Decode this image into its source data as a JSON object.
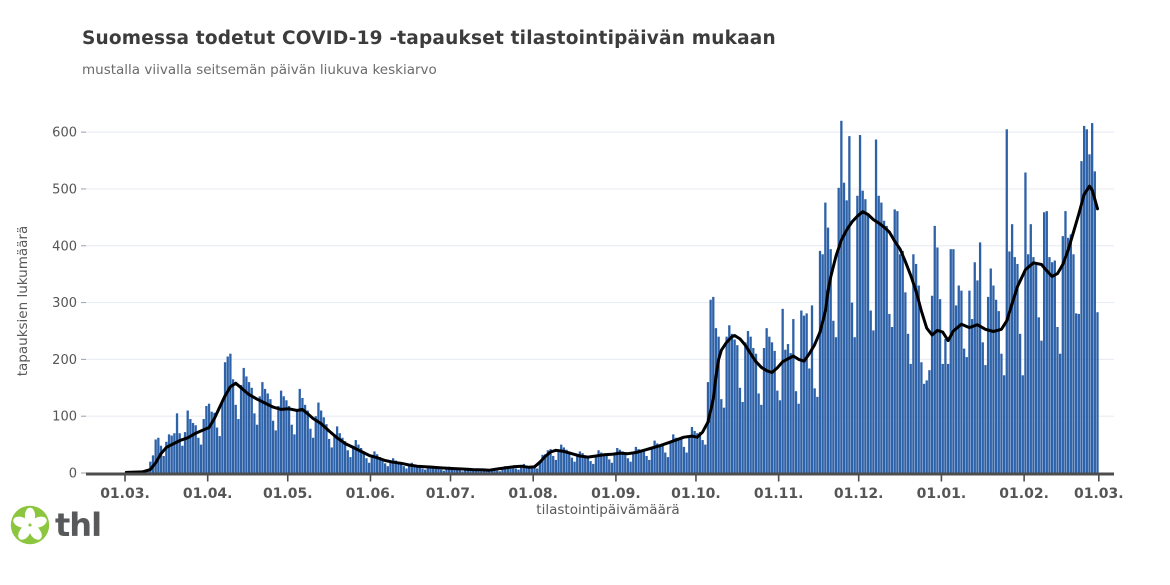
{
  "header": {
    "title": "Suomessa todetut COVID-19 -tapaukset tilastointipäivän mukaan",
    "subtitle": "mustalla viivalla seitsemän päivän liukuva keskiarvo"
  },
  "chart_data": {
    "type": "bar",
    "title": "Suomessa todetut COVID-19 -tapaukset tilastointipäivän mukaan",
    "subtitle": "mustalla viivalla seitsemän päivän liukuva keskiarvo",
    "xlabel": "tilastointipäivämäärä",
    "ylabel": "tapauksien lukumäärä",
    "ylim": [
      0,
      639
    ],
    "grid": true,
    "y_ticks": [
      0,
      100,
      200,
      300,
      400,
      500,
      600
    ],
    "x_ticks": [
      {
        "label": "01.03.",
        "day": 0
      },
      {
        "label": "01.04.",
        "day": 31
      },
      {
        "label": "01.05.",
        "day": 61
      },
      {
        "label": "01.06.",
        "day": 92
      },
      {
        "label": "01.07.",
        "day": 122
      },
      {
        "label": "01.08.",
        "day": 153
      },
      {
        "label": "01.09.",
        "day": 184
      },
      {
        "label": "01.10.",
        "day": 214
      },
      {
        "label": "01.11.",
        "day": 245
      },
      {
        "label": "01.12.",
        "day": 275
      },
      {
        "label": "01.01.",
        "day": 306
      },
      {
        "label": "01.02.",
        "day": 337
      },
      {
        "label": "01.03.",
        "day": 365
      }
    ],
    "series": [
      {
        "name": "daily-cases",
        "type": "bar"
      },
      {
        "name": "seven-day-moving-average",
        "type": "line"
      }
    ],
    "daily_values": [
      0,
      1,
      2,
      3,
      2,
      2,
      1,
      2,
      6,
      20,
      31,
      59,
      62,
      48,
      30,
      55,
      68,
      66,
      70,
      105,
      70,
      48,
      72,
      110,
      95,
      88,
      84,
      62,
      50,
      95,
      118,
      122,
      108,
      106,
      80,
      65,
      125,
      195,
      205,
      210,
      165,
      120,
      95,
      155,
      185,
      170,
      160,
      150,
      105,
      85,
      135,
      160,
      148,
      140,
      130,
      92,
      75,
      118,
      145,
      135,
      128,
      118,
      85,
      68,
      112,
      148,
      132,
      120,
      110,
      78,
      62,
      100,
      124,
      110,
      98,
      86,
      60,
      45,
      68,
      82,
      70,
      62,
      56,
      40,
      28,
      48,
      58,
      50,
      44,
      38,
      26,
      18,
      32,
      38,
      33,
      28,
      25,
      17,
      12,
      22,
      26,
      22,
      19,
      17,
      12,
      8,
      15,
      18,
      15,
      13,
      12,
      8,
      6,
      11,
      13,
      11,
      10,
      9,
      6,
      4,
      9,
      11,
      9,
      8,
      8,
      5,
      3,
      7,
      9,
      8,
      7,
      6,
      4,
      3,
      6,
      7,
      6,
      5,
      6,
      4,
      3,
      8,
      12,
      11,
      12,
      11,
      8,
      6,
      13,
      16,
      13,
      10,
      10,
      9,
      8,
      20,
      32,
      33,
      40,
      42,
      30,
      23,
      40,
      50,
      45,
      41,
      38,
      27,
      20,
      31,
      38,
      35,
      31,
      29,
      21,
      16,
      30,
      40,
      36,
      33,
      32,
      24,
      18,
      34,
      44,
      41,
      38,
      36,
      26,
      20,
      35,
      46,
      42,
      39,
      41,
      30,
      23,
      44,
      57,
      52,
      50,
      49,
      36,
      28,
      53,
      68,
      62,
      60,
      61,
      46,
      36,
      63,
      81,
      74,
      70,
      72,
      58,
      50,
      160,
      305,
      310,
      255,
      240,
      130,
      115,
      240,
      260,
      245,
      235,
      225,
      150,
      125,
      230,
      250,
      240,
      220,
      210,
      140,
      120,
      220,
      255,
      240,
      230,
      215,
      145,
      128,
      289,
      217,
      227,
      211,
      271,
      144,
      122,
      286,
      277,
      281,
      184,
      295,
      149,
      134,
      391,
      385,
      476,
      432,
      394,
      268,
      239,
      502,
      620,
      511,
      480,
      593,
      300,
      239,
      488,
      595,
      497,
      482,
      456,
      286,
      251,
      587,
      488,
      476,
      444,
      435,
      280,
      257,
      464,
      461,
      385,
      391,
      318,
      245,
      192,
      385,
      368,
      330,
      195,
      157,
      163,
      181,
      312,
      435,
      397,
      306,
      192,
      236,
      192,
      394,
      394,
      295,
      330,
      321,
      219,
      204,
      321,
      271,
      371,
      339,
      406,
      230,
      190,
      310,
      360,
      330,
      305,
      285,
      210,
      172,
      605,
      390,
      438,
      380,
      368,
      245,
      172,
      529,
      385,
      438,
      380,
      368,
      274,
      233,
      459,
      461,
      380,
      371,
      374,
      257,
      210,
      417,
      461,
      414,
      420,
      385,
      281,
      280,
      549,
      611,
      605,
      561,
      616,
      531,
      283
    ],
    "avg_line_points": [
      [
        0,
        1
      ],
      [
        6,
        2
      ],
      [
        9,
        6
      ],
      [
        11,
        18
      ],
      [
        13,
        34
      ],
      [
        15,
        45
      ],
      [
        17,
        50
      ],
      [
        20,
        57
      ],
      [
        23,
        62
      ],
      [
        26,
        70
      ],
      [
        29,
        76
      ],
      [
        31,
        80
      ],
      [
        33,
        96
      ],
      [
        35,
        116
      ],
      [
        37,
        136
      ],
      [
        39,
        152
      ],
      [
        41,
        158
      ],
      [
        43,
        150
      ],
      [
        46,
        138
      ],
      [
        49,
        130
      ],
      [
        52,
        123
      ],
      [
        55,
        116
      ],
      [
        58,
        112
      ],
      [
        61,
        113
      ],
      [
        64,
        110
      ],
      [
        66,
        112
      ],
      [
        68,
        104
      ],
      [
        70,
        96
      ],
      [
        73,
        87
      ],
      [
        76,
        74
      ],
      [
        79,
        62
      ],
      [
        82,
        52
      ],
      [
        85,
        45
      ],
      [
        88,
        38
      ],
      [
        91,
        31
      ],
      [
        94,
        27
      ],
      [
        97,
        22
      ],
      [
        100,
        19
      ],
      [
        103,
        17
      ],
      [
        106,
        14
      ],
      [
        109,
        12
      ],
      [
        112,
        11
      ],
      [
        115,
        10
      ],
      [
        118,
        9
      ],
      [
        122,
        8
      ],
      [
        126,
        7
      ],
      [
        130,
        6
      ],
      [
        134,
        5.5
      ],
      [
        136,
        5
      ],
      [
        139,
        7
      ],
      [
        142,
        9
      ],
      [
        145,
        11
      ],
      [
        148,
        12
      ],
      [
        151,
        10
      ],
      [
        153,
        11
      ],
      [
        155,
        19
      ],
      [
        157,
        29
      ],
      [
        159,
        37
      ],
      [
        161,
        40
      ],
      [
        164,
        38
      ],
      [
        167,
        34
      ],
      [
        170,
        30
      ],
      [
        173,
        28
      ],
      [
        176,
        30
      ],
      [
        179,
        32
      ],
      [
        182,
        33
      ],
      [
        185,
        35
      ],
      [
        188,
        34
      ],
      [
        191,
        36
      ],
      [
        194,
        40
      ],
      [
        197,
        44
      ],
      [
        200,
        48
      ],
      [
        203,
        53
      ],
      [
        206,
        58
      ],
      [
        209,
        63
      ],
      [
        212,
        65
      ],
      [
        214,
        63
      ],
      [
        216,
        72
      ],
      [
        218,
        90
      ],
      [
        220,
        130
      ],
      [
        221,
        170
      ],
      [
        222,
        200
      ],
      [
        223,
        216
      ],
      [
        225,
        230
      ],
      [
        227,
        240
      ],
      [
        228,
        242
      ],
      [
        230,
        236
      ],
      [
        232,
        225
      ],
      [
        234,
        210
      ],
      [
        236,
        196
      ],
      [
        238,
        186
      ],
      [
        240,
        180
      ],
      [
        242,
        177
      ],
      [
        244,
        185
      ],
      [
        246,
        196
      ],
      [
        248,
        201
      ],
      [
        250,
        206
      ],
      [
        252,
        200
      ],
      [
        254,
        197
      ],
      [
        256,
        210
      ],
      [
        258,
        226
      ],
      [
        260,
        248
      ],
      [
        262,
        285
      ],
      [
        263,
        320
      ],
      [
        264,
        345
      ],
      [
        266,
        382
      ],
      [
        268,
        410
      ],
      [
        270,
        428
      ],
      [
        272,
        442
      ],
      [
        274,
        452
      ],
      [
        276,
        460
      ],
      [
        278,
        455
      ],
      [
        280,
        446
      ],
      [
        282,
        440
      ],
      [
        284,
        433
      ],
      [
        286,
        424
      ],
      [
        288,
        408
      ],
      [
        290,
        394
      ],
      [
        292,
        372
      ],
      [
        294,
        348
      ],
      [
        296,
        320
      ],
      [
        298,
        285
      ],
      [
        300,
        255
      ],
      [
        302,
        243
      ],
      [
        304,
        251
      ],
      [
        306,
        248
      ],
      [
        308,
        233
      ],
      [
        310,
        250
      ],
      [
        313,
        262
      ],
      [
        316,
        256
      ],
      [
        319,
        261
      ],
      [
        322,
        253
      ],
      [
        325,
        249
      ],
      [
        328,
        253
      ],
      [
        330,
        268
      ],
      [
        332,
        298
      ],
      [
        334,
        328
      ],
      [
        337,
        358
      ],
      [
        340,
        370
      ],
      [
        343,
        367
      ],
      [
        345,
        356
      ],
      [
        347,
        346
      ],
      [
        349,
        351
      ],
      [
        351,
        367
      ],
      [
        353,
        392
      ],
      [
        355,
        424
      ],
      [
        357,
        456
      ],
      [
        359,
        490
      ],
      [
        361,
        505
      ],
      [
        362,
        498
      ],
      [
        363,
        482
      ],
      [
        364,
        465
      ]
    ],
    "colors": {
      "bar": "#2d61a8",
      "line": "#000000",
      "grid": "#e9edf4",
      "axis": "#4d4d4d",
      "tick_label": "#555555",
      "title": "#3c3c3c",
      "subtitle": "#6b6b6b"
    }
  },
  "footer": {
    "logo_text": "thl",
    "logo_color": "#8cc63e"
  }
}
